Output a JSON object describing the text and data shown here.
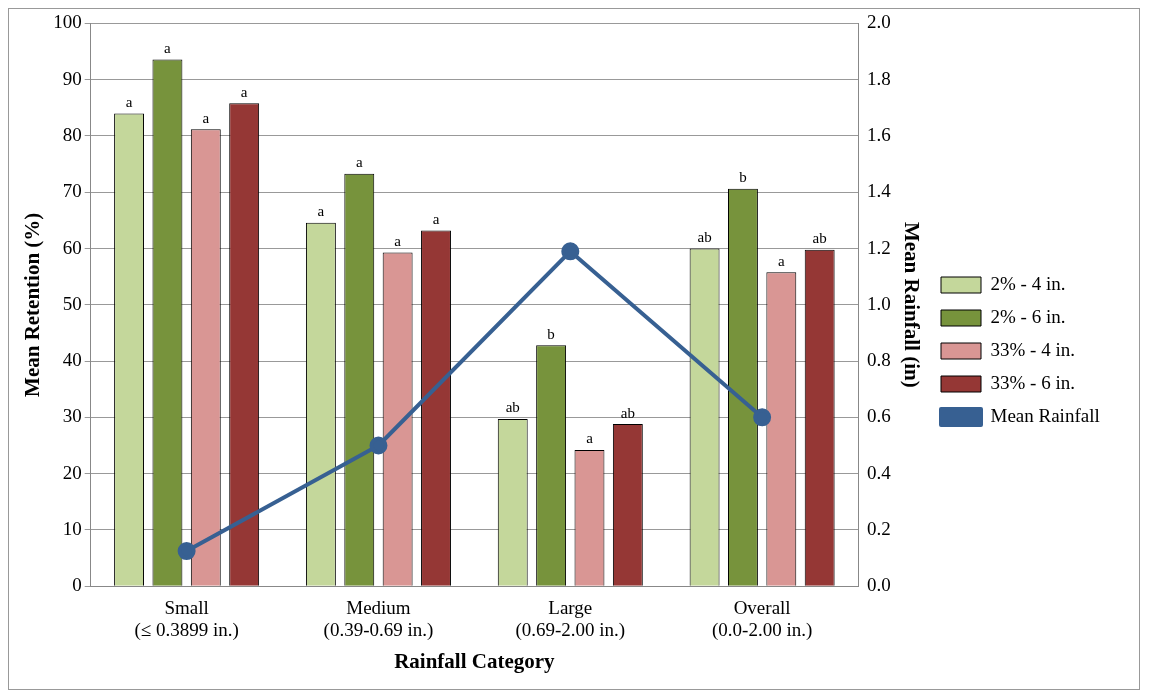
{
  "chart_data": {
    "type": "bar",
    "xlabel": "Rainfall Category",
    "ylabel": "Mean Retention (%)",
    "y2label": "Mean Rainfall (in)",
    "categories": [
      "Small\n(≤ 0.3899 in.)",
      "Medium\n(0.39-0.69 in.)",
      "Large\n(0.69-2.00 in.)",
      "Overall\n(0.0-2.00 in.)"
    ],
    "series": [
      {
        "name": "2% - 4 in.",
        "color": "#c4d79b",
        "values": [
          84,
          64.6,
          29.7,
          60
        ],
        "value_labels": [
          "a",
          "a",
          "ab",
          "ab"
        ]
      },
      {
        "name": "2% - 6 in.",
        "color": "#77933c",
        "values": [
          93.6,
          73.3,
          42.8,
          70.6
        ],
        "value_labels": [
          "a",
          "a",
          "b",
          "b"
        ]
      },
      {
        "name": "33% - 4 in.",
        "color": "#d99694",
        "values": [
          81.2,
          59.3,
          24.2,
          55.8
        ],
        "value_labels": [
          "a",
          "a",
          "a",
          "a"
        ]
      },
      {
        "name": "33% - 6 in.",
        "color": "#953735",
        "values": [
          85.8,
          63.2,
          28.8,
          59.8
        ],
        "value_labels": [
          "a",
          "a",
          "ab",
          "ab"
        ]
      },
      {
        "name": "Mean Rainfall",
        "type": "line",
        "axis": "y2",
        "color": "#376092",
        "values": [
          0.125,
          0.5,
          1.19,
          0.6
        ],
        "marker": "circle"
      }
    ],
    "ylim": [
      0,
      100
    ],
    "yticks": [
      0,
      10,
      20,
      30,
      40,
      50,
      60,
      70,
      80,
      90,
      100
    ],
    "y2lim": [
      0,
      2
    ],
    "y2ticks": [
      {
        "value": 0,
        "label": "0.0"
      },
      {
        "value": 0.2,
        "label": "0.2"
      },
      {
        "value": 0.4,
        "label": "0.4"
      },
      {
        "value": 0.6,
        "label": "0.6"
      },
      {
        "value": 0.8,
        "label": "0.8"
      },
      {
        "value": 1,
        "label": "1.0"
      },
      {
        "value": 1.2,
        "label": "1.2"
      },
      {
        "value": 1.4,
        "label": "1.4"
      },
      {
        "value": 1.6,
        "label": "1.6"
      },
      {
        "value": 1.8,
        "label": "1.8"
      },
      {
        "value": 2,
        "label": "2.0"
      }
    ],
    "grid": "y",
    "legend": "right"
  }
}
